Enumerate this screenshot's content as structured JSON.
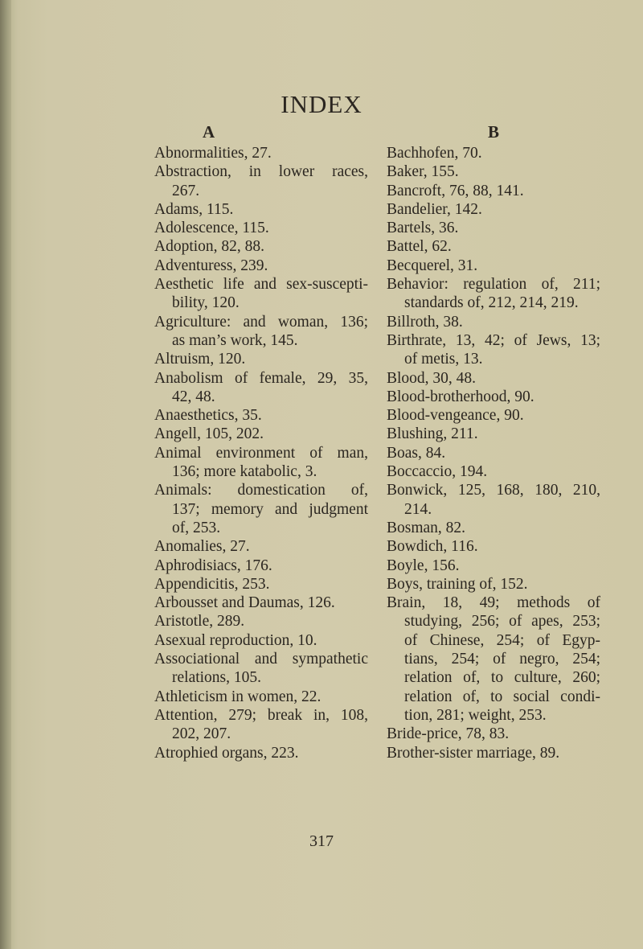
{
  "title": "INDEX",
  "page_number": "317",
  "columns": [
    {
      "letter": "A",
      "entries": [
        {
          "lines": [
            "Abnormalities, 27."
          ]
        },
        {
          "lines": [
            "Abstraction, in lower races,",
            "267."
          ]
        },
        {
          "lines": [
            "Adams, 115."
          ]
        },
        {
          "lines": [
            "Adolescence, 115."
          ]
        },
        {
          "lines": [
            "Adoption, 82, 88."
          ]
        },
        {
          "lines": [
            "Adventuress, 239."
          ]
        },
        {
          "lines": [
            "Aesthetic life and sex-suscepti-",
            "bility, 120."
          ]
        },
        {
          "lines": [
            "Agriculture: and woman, 136;",
            "as man’s work, 145."
          ]
        },
        {
          "lines": [
            "Altruism, 120."
          ]
        },
        {
          "lines": [
            "Anabolism of female, 29, 35,",
            "42, 48."
          ]
        },
        {
          "lines": [
            "Anaesthetics, 35."
          ]
        },
        {
          "lines": [
            "Angell, 105, 202."
          ]
        },
        {
          "lines": [
            "Animal environment of man,",
            "136; more katabolic, 3."
          ]
        },
        {
          "lines": [
            "Animals: domestication of,",
            "137; memory and judgment",
            "of, 253."
          ]
        },
        {
          "lines": [
            "Anomalies, 27."
          ]
        },
        {
          "lines": [
            "Aphrodisiacs, 176."
          ]
        },
        {
          "lines": [
            "Appendicitis, 253."
          ]
        },
        {
          "lines": [
            "Arbousset and Daumas, 126."
          ]
        },
        {
          "lines": [
            "Aristotle, 289."
          ]
        },
        {
          "lines": [
            "Asexual reproduction, 10."
          ]
        },
        {
          "lines": [
            "Associational and sympathetic",
            "relations, 105."
          ]
        },
        {
          "lines": [
            "Athleticism in women, 22."
          ]
        },
        {
          "lines": [
            "Attention, 279; break in, 108,",
            "202, 207."
          ]
        },
        {
          "lines": [
            "Atrophied organs, 223."
          ]
        }
      ]
    },
    {
      "letter": "B",
      "entries": [
        {
          "lines": [
            "Bachhofen, 70."
          ]
        },
        {
          "lines": [
            "Baker, 155."
          ]
        },
        {
          "lines": [
            "Bancroft, 76, 88, 141."
          ]
        },
        {
          "lines": [
            "Bandelier, 142."
          ]
        },
        {
          "lines": [
            "Bartels, 36."
          ]
        },
        {
          "lines": [
            "Battel, 62."
          ]
        },
        {
          "lines": [
            "Becquerel, 31."
          ]
        },
        {
          "lines": [
            "Behavior: regulation of, 211;",
            "standards of, 212, 214, 219."
          ]
        },
        {
          "lines": [
            "Billroth, 38."
          ]
        },
        {
          "lines": [
            "Birthrate, 13, 42; of Jews, 13;",
            "of metis, 13."
          ]
        },
        {
          "lines": [
            "Blood, 30, 48."
          ]
        },
        {
          "lines": [
            "Blood-brotherhood, 90."
          ]
        },
        {
          "lines": [
            "Blood-vengeance, 90."
          ]
        },
        {
          "lines": [
            "Blushing, 211."
          ]
        },
        {
          "lines": [
            "Boas, 84."
          ]
        },
        {
          "lines": [
            "Boccaccio, 194."
          ]
        },
        {
          "lines": [
            "Bonwick, 125, 168, 180, 210,",
            "214."
          ]
        },
        {
          "lines": [
            "Bosman, 82."
          ]
        },
        {
          "lines": [
            "Bowdich, 116."
          ]
        },
        {
          "lines": [
            "Boyle, 156."
          ]
        },
        {
          "lines": [
            "Boys, training of, 152."
          ]
        },
        {
          "lines": [
            "Brain, 18, 49; methods of",
            "studying, 256; of apes, 253;",
            "of Chinese, 254; of Egyp-",
            "tians, 254; of negro, 254;",
            "relation of, to culture, 260;",
            "relation of, to social condi-",
            "tion, 281; weight, 253."
          ]
        },
        {
          "lines": [
            "Bride-price, 78, 83."
          ]
        },
        {
          "lines": [
            "Brother-sister marriage, 89."
          ]
        }
      ]
    }
  ]
}
